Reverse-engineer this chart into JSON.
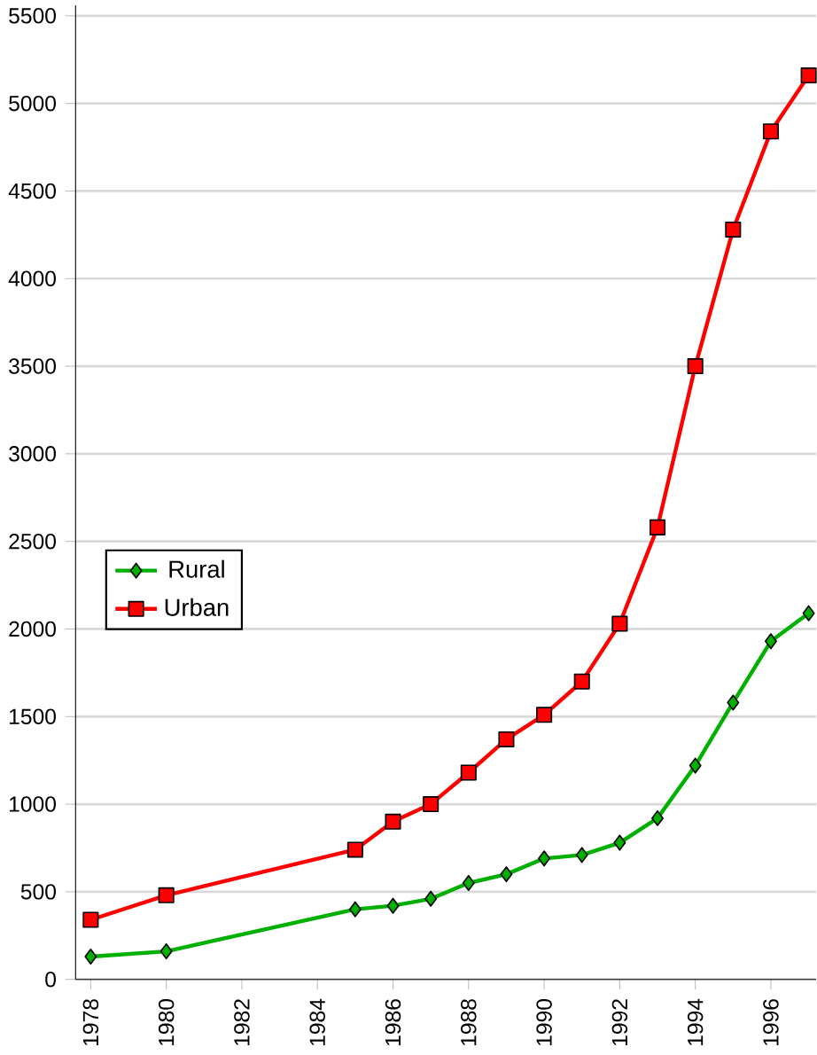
{
  "chart_data": {
    "type": "line",
    "x": [
      1978,
      1980,
      1985,
      1986,
      1987,
      1988,
      1989,
      1990,
      1991,
      1992,
      1993,
      1994,
      1995,
      1996,
      1997
    ],
    "series": [
      {
        "name": "Rural",
        "color": "#00b000",
        "marker": "diamond",
        "values": [
          130,
          160,
          400,
          420,
          460,
          550,
          600,
          690,
          710,
          780,
          920,
          1220,
          1580,
          1930,
          2090
        ]
      },
      {
        "name": "Urban",
        "color": "#ff0000",
        "marker": "square",
        "values": [
          340,
          480,
          740,
          900,
          1000,
          1180,
          1370,
          1510,
          1700,
          2030,
          2580,
          3500,
          4280,
          4840,
          5160
        ]
      }
    ],
    "xlim": [
      1977.6,
      1997.2
    ],
    "ylim": [
      0,
      5560
    ],
    "xticks": [
      1978,
      1980,
      1982,
      1984,
      1986,
      1988,
      1990,
      1992,
      1994,
      1996
    ],
    "yticks": [
      0,
      500,
      1000,
      1500,
      2000,
      2500,
      3000,
      3500,
      4000,
      4500,
      5000,
      5500
    ],
    "grid": "y",
    "legend": "left"
  }
}
